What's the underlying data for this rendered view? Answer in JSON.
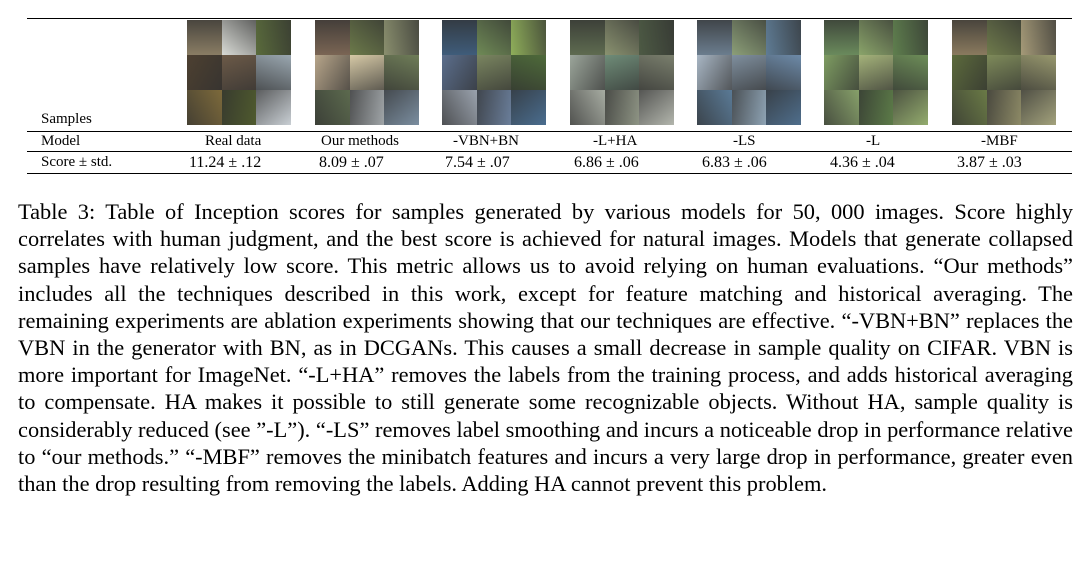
{
  "table": {
    "row_samples_label": "Samples",
    "row_model_label": "Model",
    "row_score_label": "Score ± std.",
    "columns": [
      {
        "model": "Real data",
        "score": "11.24 ± .12",
        "tiles": [
          "#8a7d64",
          "#d9dbd6",
          "#5a6b3c",
          "#4d4031",
          "#6c5a48",
          "#9aa7b0",
          "#7d6a3b",
          "#4f5a2e",
          "#c9cfd4"
        ]
      },
      {
        "model": "Our methods",
        "score": "8.09 ± .07",
        "tiles": [
          "#7a6554",
          "#6c7a4a",
          "#8a8f6e",
          "#b7a58a",
          "#d6c9a6",
          "#6f7d58",
          "#5c6a4e",
          "#a0a5a8",
          "#7b8ea0"
        ]
      },
      {
        "model": "-VBN+BN",
        "score": "7.54 ± .07",
        "tiles": [
          "#3f5c7a",
          "#6f8a56",
          "#8fae5a",
          "#5b6e8c",
          "#7a8560",
          "#4e6a3a",
          "#9aa2ad",
          "#6a7e9a",
          "#4a6d8f"
        ]
      },
      {
        "model": "-L+HA",
        "score": "6.86 ± .06",
        "tiles": [
          "#5e6b50",
          "#8a9270",
          "#4d5a44",
          "#9ba59a",
          "#6f8c78",
          "#7a7f6d",
          "#a7aca2",
          "#8e9484",
          "#b3b6ad"
        ]
      },
      {
        "model": "-LS",
        "score": "6.83 ± .06",
        "tiles": [
          "#6b7d8e",
          "#8c9f78",
          "#5f7c95",
          "#a8b6c4",
          "#7f8f9e",
          "#6d8aa8",
          "#5a7a96",
          "#8ea3b4",
          "#4f6e8c"
        ]
      },
      {
        "model": "-L",
        "score": "4.36 ± .04",
        "tiles": [
          "#6a8a5c",
          "#8aa46a",
          "#5f7f4e",
          "#7e9c62",
          "#a4b27a",
          "#6d8d58",
          "#87a06a",
          "#5c7b48",
          "#94ac6e"
        ]
      },
      {
        "model": "-MBF",
        "score": "3.87 ± .03",
        "tiles": [
          "#8a7a5e",
          "#6f7b4c",
          "#a59a78",
          "#5c6a3c",
          "#7e8a5a",
          "#98986e",
          "#6a7a46",
          "#8d8a66",
          "#a3a27c"
        ]
      }
    ]
  },
  "caption": {
    "text": "Table 3: Table of Inception scores for samples generated by various models for 50, 000 images. Score highly correlates with human judgment, and the best score is achieved for natural images. Models that generate collapsed samples have relatively low score. This metric allows us to avoid relying on human evaluations. “Our methods” includes all the techniques described in this work, except for feature matching and historical averaging. The remaining experiments are ablation experiments showing that our techniques are effective. “-VBN+BN” replaces the VBN in the generator with BN, as in DCGANs. This causes a small decrease in sample quality on CIFAR. VBN is more important for ImageNet. “-L+HA” removes the labels from the training process, and adds historical averaging to compensate. HA makes it possible to still generate some recognizable objects. Without HA, sample quality is considerably reduced (see ”-L”). “-LS” removes label smoothing and incurs a noticeable drop in performance relative to “our methods.” “-MBF” removes the minibatch features and incurs a very large drop in performance, greater even than the drop resulting from removing the labels. Adding HA cannot prevent this problem."
  }
}
